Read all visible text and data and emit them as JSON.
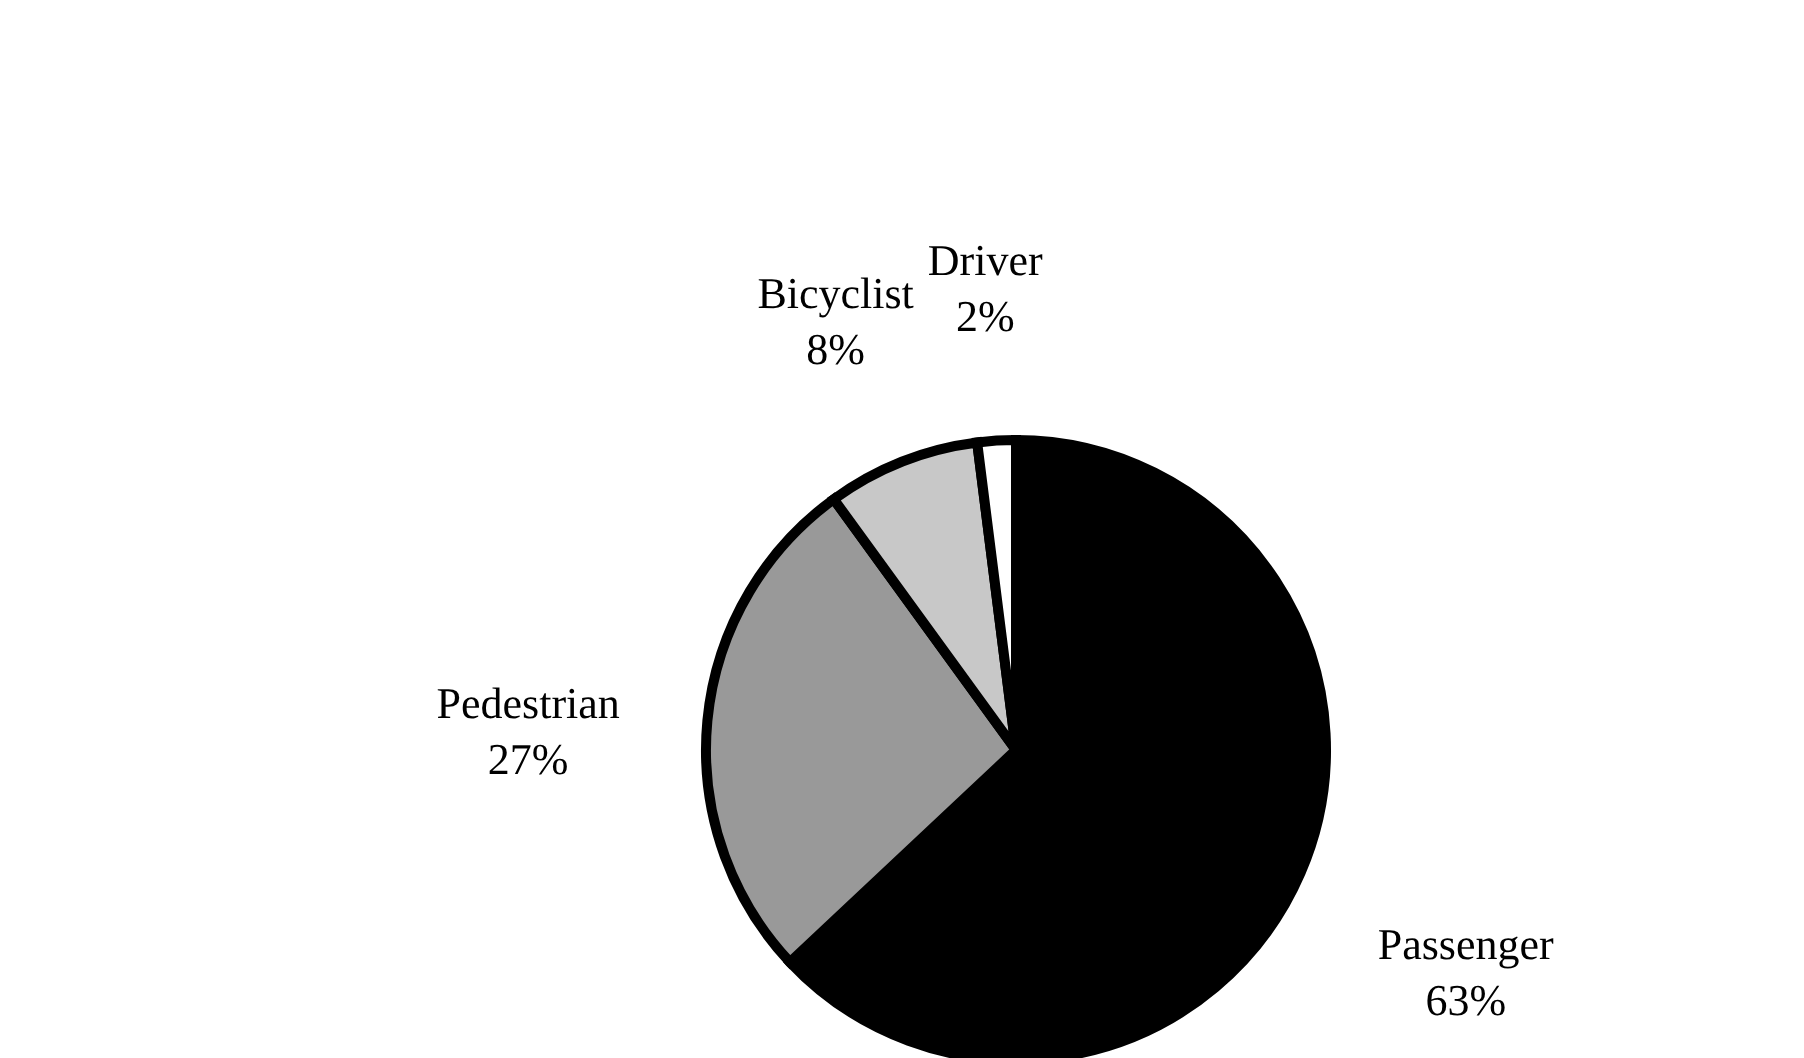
{
  "chart_data": {
    "type": "pie",
    "categories": [
      "Passenger",
      "Pedestrian",
      "Bicyclist",
      "Driver"
    ],
    "values": [
      63,
      27,
      8,
      2
    ],
    "value_labels": [
      "63%",
      "27%",
      "8%",
      "2%"
    ],
    "colors": [
      "#000000",
      "#999999",
      "#c8c8c8",
      "#ffffff"
    ]
  }
}
